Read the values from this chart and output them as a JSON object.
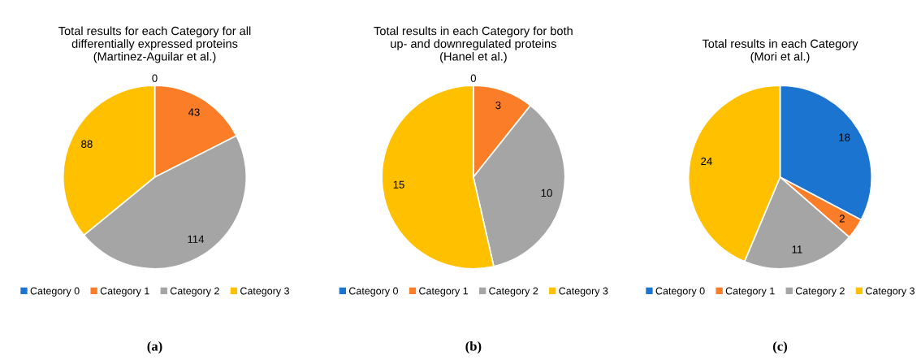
{
  "chart_data": [
    {
      "type": "pie",
      "title": "Total results for each Category for all\ndifferentially expressed proteins\n(Martinez-Aguilar et al.)",
      "categories": [
        "Category 0",
        "Category 1",
        "Category 2",
        "Category 3"
      ],
      "values": [
        0,
        43,
        114,
        88
      ],
      "colors": [
        "#1b75d0",
        "#fb7d28",
        "#a5a5a5",
        "#ffc000"
      ],
      "value_labels": [
        "0",
        "43",
        "114",
        "88"
      ],
      "legend": "bottom",
      "annotations": [
        "(a)"
      ]
    },
    {
      "type": "pie",
      "title": "Total results in each Category for both\nup- and downregulated proteins\n(Hanel et al.)",
      "categories": [
        "Category 0",
        "Category 1",
        "Category 2",
        "Category 3"
      ],
      "values": [
        0,
        3,
        10,
        15
      ],
      "colors": [
        "#1b75d0",
        "#fb7d28",
        "#a5a5a5",
        "#ffc000"
      ],
      "value_labels": [
        "0",
        "3",
        "10",
        "15"
      ],
      "legend": "bottom",
      "annotations": [
        "(b)"
      ]
    },
    {
      "type": "pie",
      "title": "Total results in each Category\n(Mori et al.)",
      "categories": [
        "Category 0",
        "Category 1",
        "Category 2",
        "Category 3"
      ],
      "values": [
        18,
        2,
        11,
        24
      ],
      "colors": [
        "#1b75d0",
        "#fb7d28",
        "#a5a5a5",
        "#ffc000"
      ],
      "data_labels": true,
      "legend": "bottom",
      "annotations": [
        "(c)"
      ]
    }
  ]
}
